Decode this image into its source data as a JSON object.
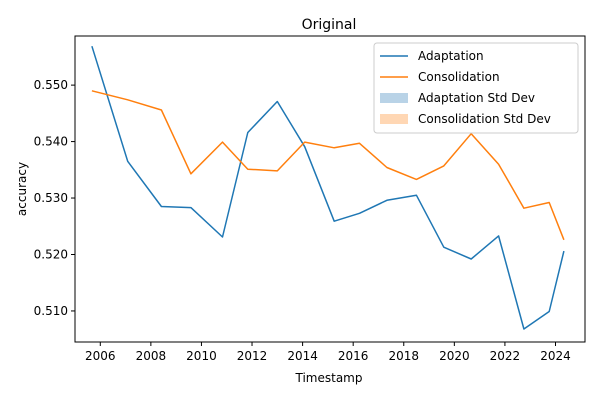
{
  "chart_data": {
    "type": "line",
    "title": "Original",
    "xlabel": "Timestamp",
    "ylabel": "accuracy",
    "x_type": "date",
    "x": [
      "2005-09",
      "2007-02",
      "2008-06",
      "2009-08",
      "2010-11",
      "2011-11",
      "2013-01",
      "2014-02",
      "2015-04",
      "2016-04",
      "2017-05",
      "2018-07",
      "2019-08",
      "2020-09",
      "2021-10",
      "2022-10",
      "2023-10",
      "2024-05"
    ],
    "xticks": [
      "2006",
      "2008",
      "2010",
      "2012",
      "2014",
      "2016",
      "2018",
      "2020",
      "2022",
      "2024"
    ],
    "xlim": [
      "2005-01",
      "2025-03"
    ],
    "yticks": [
      "0.510",
      "0.520",
      "0.530",
      "0.540",
      "0.550"
    ],
    "ylim": [
      0.5045,
      0.5587
    ],
    "grid": false,
    "legend_position": "top-right",
    "series": [
      {
        "name": "Adaptation",
        "color": "#1f77b4",
        "values": [
          0.5569,
          0.5365,
          0.5285,
          0.5283,
          0.5231,
          0.5416,
          0.5471,
          0.5391,
          0.5259,
          0.5273,
          0.5296,
          0.5305,
          0.5213,
          0.5192,
          0.5233,
          0.5068,
          0.5099,
          0.5206
        ]
      },
      {
        "name": "Consolidation",
        "color": "#ff7f0e",
        "values": [
          0.549,
          0.5474,
          0.5456,
          0.5343,
          0.5399,
          0.5351,
          0.5348,
          0.5399,
          0.5389,
          0.5397,
          0.5354,
          0.5333,
          0.5357,
          0.5414,
          0.536,
          0.5282,
          0.5292,
          0.5226
        ]
      }
    ],
    "legend": [
      {
        "label": "Adaptation",
        "kind": "line",
        "color": "#1f77b4"
      },
      {
        "label": "Consolidation",
        "kind": "line",
        "color": "#ff7f0e"
      },
      {
        "label": "Adaptation Std Dev",
        "kind": "patch",
        "color": "#b9d3e7"
      },
      {
        "label": "Consolidation Std Dev",
        "kind": "patch",
        "color": "#ffd7b4"
      }
    ]
  }
}
